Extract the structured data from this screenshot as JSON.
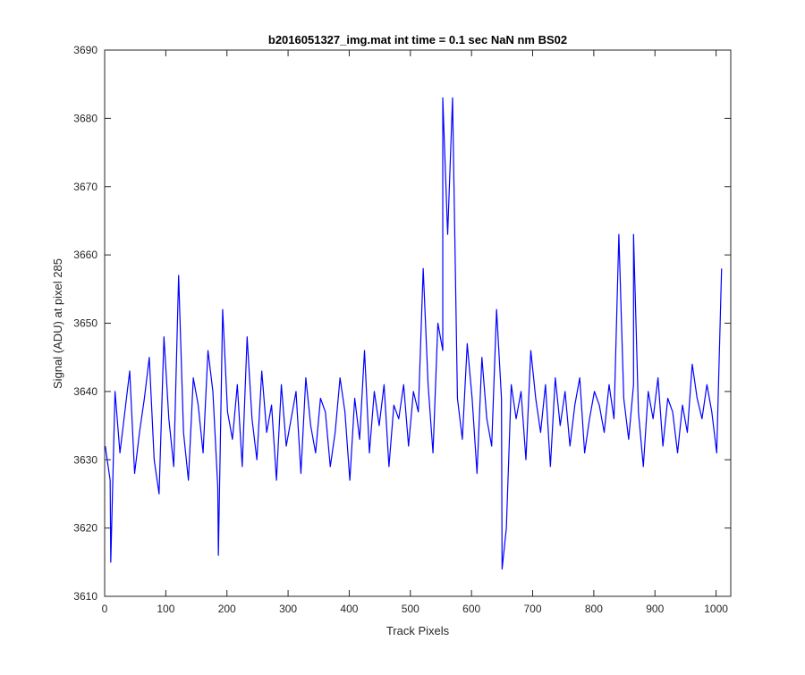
{
  "chart_data": {
    "type": "line",
    "title": "b2016051327_img.mat int time = 0.1 sec  NaN nm BS02",
    "xlabel": "Track Pixels",
    "ylabel": "Signal (ADU) at pixel 285",
    "xlim": [
      0,
      1024
    ],
    "ylim": [
      3610,
      3690
    ],
    "x_ticks": [
      0,
      100,
      200,
      300,
      400,
      500,
      600,
      700,
      800,
      900,
      1000
    ],
    "y_ticks": [
      3610,
      3620,
      3630,
      3640,
      3650,
      3660,
      3670,
      3680,
      3690
    ],
    "grid": false,
    "line_color": "#0000ff",
    "series": [
      {
        "x_start": 1,
        "x_step": 8,
        "values": [
          3632,
          3627,
          3640,
          3631,
          3637,
          3643,
          3628,
          3634,
          3639,
          3645,
          3630,
          3625,
          3648,
          3636,
          3629,
          3657,
          3634,
          3627,
          3642,
          3638,
          3631,
          3646,
          3640,
          3626,
          3652,
          3637,
          3633,
          3641,
          3629,
          3648,
          3636,
          3630,
          3643,
          3634,
          3638,
          3627,
          3641,
          3632,
          3636,
          3640,
          3628,
          3642,
          3635,
          3631,
          3639,
          3637,
          3629,
          3634,
          3642,
          3637,
          3627,
          3639,
          3633,
          3646,
          3631,
          3640,
          3635,
          3641,
          3629,
          3638,
          3636,
          3641,
          3632,
          3640,
          3637,
          3658,
          3641,
          3631,
          3650,
          3646,
          3663,
          3683,
          3639,
          3633,
          3647,
          3639,
          3628,
          3645,
          3636,
          3632,
          3652,
          3639,
          3620,
          3641,
          3636,
          3640,
          3630,
          3646,
          3639,
          3634,
          3641,
          3629,
          3642,
          3635,
          3640,
          3632,
          3638,
          3642,
          3631,
          3636,
          3640,
          3638,
          3634,
          3641,
          3636,
          3663,
          3639,
          3633,
          3641,
          3637,
          3629,
          3640,
          3636,
          3642,
          3632,
          3639,
          3637,
          3631,
          3638,
          3634,
          3644,
          3639,
          3636,
          3641,
          3637,
          3631,
          3658
        ]
      }
    ],
    "extremes": [
      {
        "x": 10,
        "y": 3615
      },
      {
        "x": 553,
        "y": 3683
      },
      {
        "x": 650,
        "y": 3614
      },
      {
        "x": 865,
        "y": 3663
      },
      {
        "x": 186,
        "y": 3616
      }
    ]
  }
}
